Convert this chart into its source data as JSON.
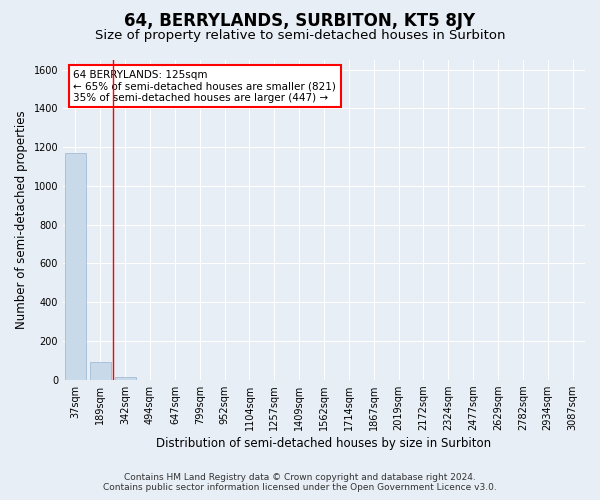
{
  "title": "64, BERRYLANDS, SURBITON, KT5 8JY",
  "subtitle": "Size of property relative to semi-detached houses in Surbiton",
  "xlabel": "Distribution of semi-detached houses by size in Surbiton",
  "ylabel": "Number of semi-detached properties",
  "footer_line1": "Contains HM Land Registry data © Crown copyright and database right 2024.",
  "footer_line2": "Contains public sector information licensed under the Open Government Licence v3.0.",
  "categories": [
    "37sqm",
    "189sqm",
    "342sqm",
    "494sqm",
    "647sqm",
    "799sqm",
    "952sqm",
    "1104sqm",
    "1257sqm",
    "1409sqm",
    "1562sqm",
    "1714sqm",
    "1867sqm",
    "2019sqm",
    "2172sqm",
    "2324sqm",
    "2477sqm",
    "2629sqm",
    "2782sqm",
    "2934sqm",
    "3087sqm"
  ],
  "values": [
    1170,
    90,
    15,
    0,
    0,
    0,
    0,
    0,
    0,
    0,
    0,
    0,
    0,
    0,
    0,
    0,
    0,
    0,
    0,
    0,
    0
  ],
  "bar_color": "#c8d9ea",
  "bar_edge_color": "#9ab5ce",
  "red_line_x": 1.5,
  "annotation_text_line1": "64 BERRYLANDS: 125sqm",
  "annotation_text_line2": "← 65% of semi-detached houses are smaller (821)",
  "annotation_text_line3": "35% of semi-detached houses are larger (447) →",
  "ylim": [
    0,
    1650
  ],
  "yticks": [
    0,
    200,
    400,
    600,
    800,
    1000,
    1200,
    1400,
    1600
  ],
  "bg_color": "#e8eef5",
  "plot_bg_color": "#e8eef5",
  "grid_color": "#ffffff",
  "title_fontsize": 12,
  "subtitle_fontsize": 9.5,
  "axis_label_fontsize": 8.5,
  "tick_fontsize": 7,
  "annotation_fontsize": 7.5,
  "footer_fontsize": 6.5
}
